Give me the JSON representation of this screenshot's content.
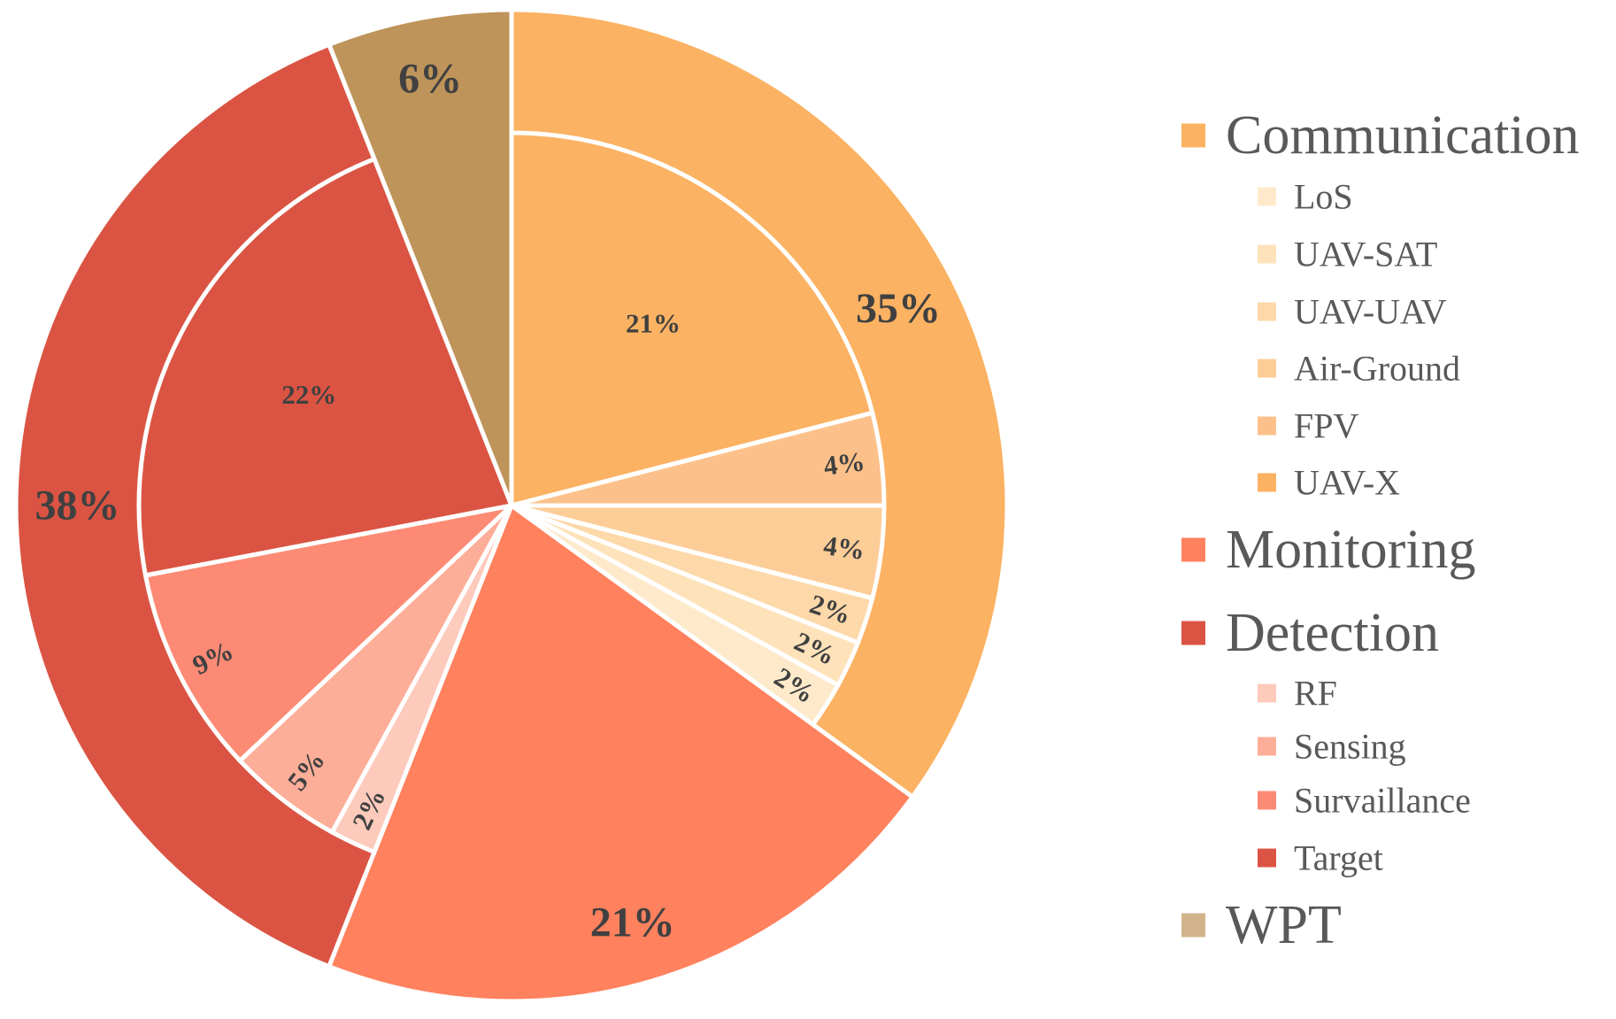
{
  "chart_data": {
    "type": "pie",
    "subtype": "nested-donut",
    "title": "",
    "outer": {
      "categories": [
        "Communication",
        "Monitoring",
        "Detection",
        "WPT"
      ],
      "values": [
        35,
        21,
        38,
        6
      ],
      "labels": [
        "35%",
        "21%",
        "38%",
        "6%"
      ],
      "colors": [
        "#FBB262",
        "#FF815D",
        "#DB5443",
        "#BE945A"
      ]
    },
    "inner": [
      {
        "name": "Communication",
        "segments": [
          {
            "name": "UAV-X",
            "value": 21,
            "label": "21%",
            "color": "#FCB263"
          },
          {
            "name": "FPV",
            "value": 4,
            "label": "4%",
            "color": "#FCC18A"
          },
          {
            "name": "Air-Ground",
            "value": 4,
            "label": "4%",
            "color": "#FDCD98"
          },
          {
            "name": "UAV-UAV",
            "value": 2,
            "label": "2%",
            "color": "#FDD8A9"
          },
          {
            "name": "UAV-SAT",
            "value": 2,
            "label": "2%",
            "color": "#FEE2BA"
          },
          {
            "name": "LoS",
            "value": 2,
            "label": "2%",
            "color": "#FEEACB"
          }
        ]
      },
      {
        "name": "Monitoring",
        "segments": [
          {
            "name": "Monitoring",
            "value": 21,
            "label": "",
            "color": "#FF815D"
          }
        ]
      },
      {
        "name": "Detection",
        "segments": [
          {
            "name": "RF",
            "value": 2,
            "label": "2%",
            "color": "#FDCABC"
          },
          {
            "name": "Sensing",
            "value": 5,
            "label": "5%",
            "color": "#FDAE98"
          },
          {
            "name": "Survaillance",
            "value": 9,
            "label": "9%",
            "color": "#FC8A74"
          },
          {
            "name": "Target",
            "value": 22,
            "label": "22%",
            "color": "#DB5443"
          }
        ]
      },
      {
        "name": "WPT",
        "segments": [
          {
            "name": "WPT",
            "value": 6,
            "label": "",
            "color": "#BE945A"
          }
        ]
      }
    ],
    "legend": {
      "position": "right",
      "items": [
        {
          "label": "Communication",
          "level": "main",
          "color": "#FBB262"
        },
        {
          "label": "LoS",
          "level": "sub",
          "color": "#FEEACB"
        },
        {
          "label": "UAV-SAT",
          "level": "sub",
          "color": "#FEE2BA"
        },
        {
          "label": "UAV-UAV",
          "level": "sub",
          "color": "#FDD8A9"
        },
        {
          "label": "Air-Ground",
          "level": "sub",
          "color": "#FDCD98"
        },
        {
          "label": "FPV",
          "level": "sub",
          "color": "#FCC18A"
        },
        {
          "label": "UAV-X",
          "level": "sub",
          "color": "#FCB263"
        },
        {
          "label": "Monitoring",
          "level": "main",
          "color": "#FF815D"
        },
        {
          "label": "Detection",
          "level": "main",
          "color": "#DB5443"
        },
        {
          "label": "RF",
          "level": "sub",
          "color": "#FDCABC"
        },
        {
          "label": "Sensing",
          "level": "sub",
          "color": "#FDAE98"
        },
        {
          "label": "Survaillance",
          "level": "sub",
          "color": "#FC8A74"
        },
        {
          "label": "Target",
          "level": "sub",
          "color": "#DB5443"
        },
        {
          "label": "WPT",
          "level": "main",
          "color": "#D2B48C"
        }
      ]
    }
  }
}
